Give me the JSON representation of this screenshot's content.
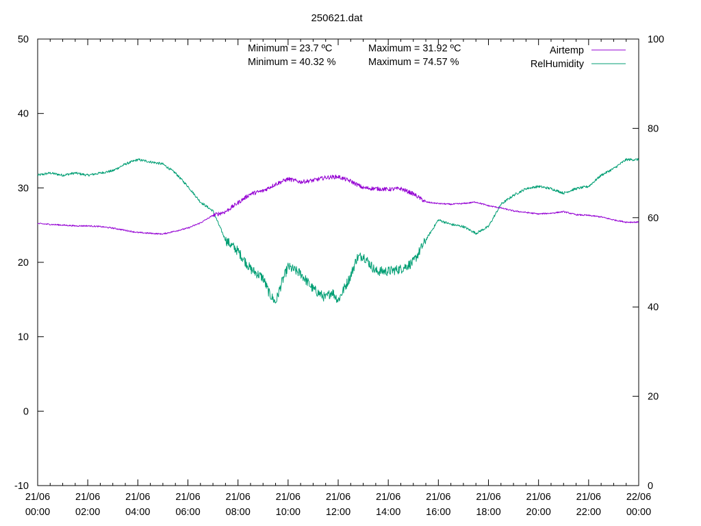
{
  "chart_data": {
    "type": "line",
    "title": "250621.dat",
    "xlabel": "",
    "ylabel": "",
    "y2label": "",
    "xlim": [
      "2025-06-21 00:00",
      "2025-06-22 00:00"
    ],
    "ylim": [
      -10,
      50
    ],
    "y2lim": [
      0,
      100
    ],
    "grid": false,
    "legend_position": "top-right",
    "x_ticks": [
      "21/06 00:00",
      "21/06 02:00",
      "21/06 04:00",
      "21/06 06:00",
      "21/06 08:00",
      "21/06 10:00",
      "21/06 12:00",
      "21/06 14:00",
      "21/06 16:00",
      "21/06 18:00",
      "21/06 20:00",
      "21/06 22:00",
      "22/06 00:00"
    ],
    "y_ticks": [
      -10,
      0,
      10,
      20,
      30,
      40,
      50
    ],
    "y2_ticks": [
      0,
      20,
      40,
      60,
      80,
      100
    ],
    "annotations": [
      "Minimum = 23.7 ºC",
      "Maximum = 31.92 ºC",
      "Minimum = 40.32 %",
      "Maximum = 74.57 %"
    ],
    "series": [
      {
        "name": "Airtemp",
        "axis": "left",
        "color": "#9400d3",
        "x": [
          "00:00",
          "00:30",
          "01:00",
          "01:30",
          "02:00",
          "02:30",
          "03:00",
          "03:30",
          "04:00",
          "04:30",
          "05:00",
          "05:30",
          "06:00",
          "06:30",
          "07:00",
          "07:30",
          "08:00",
          "08:30",
          "09:00",
          "09:30",
          "10:00",
          "10:30",
          "11:00",
          "11:30",
          "12:00",
          "12:30",
          "13:00",
          "13:30",
          "14:00",
          "14:30",
          "15:00",
          "15:30",
          "16:00",
          "16:30",
          "17:00",
          "17:30",
          "18:00",
          "18:30",
          "19:00",
          "19:30",
          "20:00",
          "20:30",
          "21:00",
          "21:30",
          "22:00",
          "22:30",
          "23:00",
          "23:30",
          "24:00"
        ],
        "values": [
          25.2,
          25.1,
          25.0,
          24.9,
          24.9,
          24.8,
          24.6,
          24.3,
          24.0,
          23.9,
          23.8,
          24.2,
          24.6,
          25.3,
          26.3,
          26.8,
          28.0,
          29.2,
          29.6,
          30.5,
          31.2,
          30.8,
          31.0,
          31.4,
          31.5,
          30.9,
          30.0,
          29.9,
          29.8,
          29.9,
          29.2,
          28.1,
          27.9,
          27.8,
          27.9,
          28.1,
          27.6,
          27.3,
          26.9,
          26.7,
          26.5,
          26.6,
          26.8,
          26.4,
          26.3,
          26.1,
          25.7,
          25.4,
          25.4
        ]
      },
      {
        "name": "RelHumidity",
        "axis": "right",
        "color": "#009e73",
        "x": [
          "00:00",
          "00:30",
          "01:00",
          "01:30",
          "02:00",
          "02:30",
          "03:00",
          "03:30",
          "04:00",
          "04:30",
          "05:00",
          "05:30",
          "06:00",
          "06:30",
          "07:00",
          "07:30",
          "08:00",
          "08:30",
          "09:00",
          "09:15",
          "09:30",
          "09:45",
          "10:00",
          "10:30",
          "11:00",
          "11:30",
          "11:45",
          "12:00",
          "12:30",
          "12:45",
          "13:00",
          "13:30",
          "14:00",
          "14:30",
          "15:00",
          "15:30",
          "16:00",
          "16:30",
          "17:00",
          "17:30",
          "18:00",
          "18:30",
          "19:00",
          "19:30",
          "20:00",
          "20:30",
          "21:00",
          "21:30",
          "22:00",
          "22:30",
          "23:00",
          "23:30",
          "24:00"
        ],
        "values": [
          69.5,
          70.0,
          69.5,
          70.0,
          69.5,
          70.0,
          70.5,
          72.0,
          73.0,
          72.5,
          72.0,
          70.0,
          67.0,
          63.5,
          61.5,
          55.0,
          52.5,
          48.5,
          46.5,
          43.0,
          41.0,
          45.5,
          49.0,
          47.5,
          44.0,
          42.0,
          43.5,
          41.5,
          47.0,
          51.0,
          51.5,
          48.0,
          48.0,
          48.5,
          50.0,
          55.0,
          59.5,
          58.5,
          58.0,
          56.5,
          58.0,
          63.0,
          65.0,
          66.5,
          67.0,
          66.5,
          65.5,
          66.5,
          67.0,
          69.5,
          71.0,
          73.0,
          73.0
        ]
      }
    ]
  }
}
